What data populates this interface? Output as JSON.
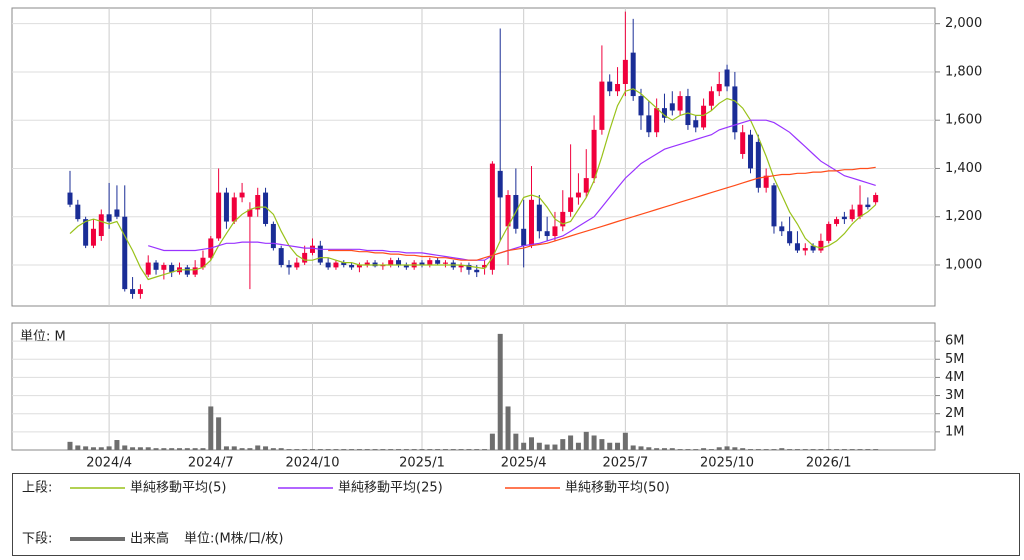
{
  "chart_data": [
    {
      "type": "candlestick",
      "legend_label": "上段:",
      "categories": [
        null,
        null,
        null,
        null,
        null,
        "2024/4",
        null,
        null,
        null,
        null,
        null,
        null,
        null,
        null,
        null,
        null,
        null,
        null,
        "2024/7",
        null,
        null,
        null,
        null,
        null,
        null,
        null,
        null,
        null,
        null,
        null,
        null,
        "2024/10",
        null,
        null,
        null,
        null,
        null,
        null,
        null,
        null,
        null,
        null,
        null,
        null,
        null,
        "2025/1",
        null,
        null,
        null,
        null,
        null,
        null,
        null,
        null,
        null,
        null,
        null,
        null,
        "2025/4",
        null,
        null,
        null,
        null,
        null,
        null,
        null,
        null,
        null,
        null,
        null,
        null,
        "2025/7",
        null,
        null,
        null,
        null,
        null,
        null,
        null,
        null,
        null,
        null,
        null,
        null,
        "2025/10",
        null,
        null,
        null,
        null,
        null,
        null,
        null,
        null,
        null,
        null,
        null,
        null,
        "2026/1",
        null,
        null,
        null,
        null,
        null,
        null
      ],
      "open": [
        1300,
        1250,
        1190,
        1080,
        1120,
        1210,
        1230,
        1200,
        900,
        880,
        960,
        1010,
        980,
        1000,
        970,
        990,
        960,
        990,
        1030,
        1110,
        1300,
        1180,
        1280,
        1200,
        1230,
        1300,
        1170,
        1070,
        1000,
        990,
        1010,
        1050,
        1080,
        1010,
        990,
        1010,
        1000,
        990,
        1000,
        1010,
        995,
        1000,
        1020,
        1000,
        990,
        1010,
        1000,
        1020,
        1005,
        1010,
        990,
        1000,
        980,
        990,
        980,
        1390,
        1160,
        1290,
        1150,
        1080,
        1250,
        1140,
        1120,
        1160,
        1220,
        1280,
        1300,
        1360,
        1560,
        1760,
        1720,
        1750,
        1880,
        1700,
        1620,
        1550,
        1650,
        1670,
        1640,
        1700,
        1600,
        1570,
        1660,
        1720,
        1810,
        1740,
        1460,
        1540,
        1510,
        1320,
        1330,
        1160,
        1140,
        1090,
        1060,
        1080,
        1060,
        1100,
        1170,
        1200,
        1190,
        1200,
        1250,
        1260
      ],
      "high": [
        1390,
        1270,
        1200,
        1190,
        1230,
        1340,
        1330,
        1330,
        950,
        920,
        1040,
        1020,
        1010,
        1010,
        1010,
        1000,
        1020,
        1060,
        1120,
        1400,
        1320,
        1300,
        1340,
        1260,
        1320,
        1320,
        1180,
        1080,
        1020,
        1030,
        1080,
        1110,
        1100,
        1030,
        1020,
        1020,
        1010,
        1010,
        1020,
        1020,
        1010,
        1030,
        1030,
        1010,
        1020,
        1020,
        1030,
        1030,
        1020,
        1020,
        1010,
        1010,
        1000,
        1020,
        1430,
        1980,
        1310,
        1400,
        1270,
        1410,
        1290,
        1200,
        1220,
        1310,
        1500,
        1380,
        1480,
        1620,
        1910,
        1790,
        1820,
        2050,
        2020,
        1730,
        1680,
        1690,
        1710,
        1720,
        1720,
        1730,
        1620,
        1690,
        1740,
        1800,
        1830,
        1800,
        1580,
        1560,
        1540,
        1400,
        1340,
        1180,
        1200,
        1140,
        1090,
        1090,
        1130,
        1180,
        1200,
        1220,
        1250,
        1330,
        1280,
        1300
      ],
      "low": [
        1240,
        1180,
        1070,
        1070,
        1100,
        1150,
        1190,
        890,
        860,
        860,
        950,
        960,
        940,
        950,
        960,
        950,
        950,
        980,
        1020,
        1100,
        1150,
        1170,
        1260,
        900,
        1200,
        1160,
        1060,
        990,
        960,
        980,
        1000,
        1040,
        1000,
        980,
        980,
        990,
        980,
        970,
        990,
        990,
        980,
        990,
        990,
        980,
        980,
        990,
        990,
        1000,
        990,
        980,
        970,
        960,
        950,
        960,
        960,
        1100,
        1000,
        1130,
        990,
        1070,
        1110,
        1100,
        1100,
        1140,
        1200,
        1250,
        1280,
        1340,
        1540,
        1700,
        1700,
        1700,
        1680,
        1560,
        1530,
        1530,
        1590,
        1620,
        1620,
        1560,
        1550,
        1560,
        1640,
        1700,
        1720,
        1520,
        1440,
        1380,
        1300,
        1300,
        1130,
        1120,
        1080,
        1050,
        1040,
        1050,
        1050,
        1090,
        1160,
        1170,
        1180,
        1190,
        1230,
        1250
      ],
      "close": [
        1250,
        1190,
        1080,
        1150,
        1210,
        1180,
        1200,
        900,
        880,
        900,
        1010,
        980,
        1000,
        970,
        990,
        960,
        990,
        1030,
        1110,
        1300,
        1180,
        1280,
        1300,
        1230,
        1290,
        1170,
        1070,
        1000,
        990,
        1010,
        1050,
        1080,
        1010,
        990,
        1010,
        1000,
        990,
        1000,
        1010,
        995,
        1000,
        1020,
        1000,
        990,
        1010,
        1000,
        1020,
        1005,
        1010,
        990,
        1000,
        980,
        970,
        1000,
        1420,
        1280,
        1290,
        1150,
        1080,
        1270,
        1140,
        1120,
        1160,
        1220,
        1280,
        1300,
        1360,
        1560,
        1760,
        1720,
        1750,
        1850,
        1700,
        1620,
        1550,
        1650,
        1610,
        1640,
        1700,
        1580,
        1570,
        1660,
        1720,
        1750,
        1740,
        1550,
        1550,
        1400,
        1320,
        1370,
        1160,
        1140,
        1090,
        1060,
        1070,
        1060,
        1100,
        1170,
        1190,
        1190,
        1230,
        1250,
        1240,
        1290
      ],
      "up_color": "#f0003c",
      "down_color": "#1a2d96",
      "series": [
        {
          "name": "単純移動平均(5)",
          "color": "#99c21a",
          "values": [
            1130,
            1160,
            1180,
            1190,
            1180,
            1170,
            1180,
            1120,
            1060,
            990,
            940,
            950,
            960,
            970,
            980,
            980,
            980,
            990,
            1020,
            1080,
            1130,
            1180,
            1210,
            1230,
            1240,
            1240,
            1210,
            1140,
            1080,
            1040,
            1020,
            1020,
            1030,
            1030,
            1020,
            1010,
            1010,
            1000,
            1000,
            1000,
            1000,
            1000,
            1000,
            1000,
            1000,
            1000,
            1000,
            1000,
            1000,
            1000,
            1000,
            995,
            990,
            985,
            1030,
            1100,
            1160,
            1220,
            1280,
            1290,
            1280,
            1240,
            1190,
            1170,
            1180,
            1230,
            1280,
            1350,
            1450,
            1560,
            1660,
            1720,
            1730,
            1710,
            1680,
            1650,
            1620,
            1600,
            1620,
            1630,
            1620,
            1620,
            1640,
            1670,
            1690,
            1680,
            1650,
            1600,
            1530,
            1450,
            1360,
            1290,
            1220,
            1170,
            1110,
            1080,
            1070,
            1080,
            1100,
            1130,
            1170,
            1200,
            1220,
            1250
          ]
        },
        {
          "name": "単純移動平均(25)",
          "color": "#9933ff",
          "values": [
            null,
            null,
            null,
            null,
            null,
            null,
            null,
            null,
            null,
            null,
            1080,
            1070,
            1060,
            1060,
            1060,
            1060,
            1060,
            1065,
            1070,
            1080,
            1090,
            1090,
            1095,
            1095,
            1095,
            1090,
            1090,
            1085,
            1080,
            1075,
            1070,
            1070,
            1065,
            1065,
            1065,
            1065,
            1065,
            1065,
            1060,
            1060,
            1060,
            1055,
            1055,
            1050,
            1050,
            1050,
            1045,
            1040,
            1035,
            1030,
            1025,
            1020,
            1020,
            1020,
            1040,
            1050,
            1060,
            1070,
            1080,
            1085,
            1090,
            1100,
            1110,
            1120,
            1140,
            1160,
            1180,
            1200,
            1240,
            1280,
            1320,
            1360,
            1390,
            1420,
            1440,
            1460,
            1480,
            1490,
            1500,
            1510,
            1520,
            1530,
            1540,
            1560,
            1570,
            1580,
            1590,
            1600,
            1600,
            1600,
            1590,
            1570,
            1550,
            1520,
            1490,
            1460,
            1430,
            1410,
            1390,
            1370,
            1360,
            1350,
            1340,
            1330
          ]
        },
        {
          "name": "単純移動平均(50)",
          "color": "#ff4c1a",
          "values": [
            null,
            null,
            null,
            null,
            null,
            null,
            null,
            null,
            null,
            null,
            null,
            null,
            null,
            null,
            null,
            null,
            null,
            null,
            null,
            null,
            null,
            null,
            null,
            null,
            null,
            null,
            null,
            null,
            null,
            null,
            null,
            null,
            null,
            1060,
            1060,
            1060,
            1060,
            1055,
            1055,
            1050,
            1050,
            1045,
            1045,
            1040,
            1040,
            1035,
            1035,
            1030,
            1030,
            1025,
            1020,
            1020,
            1020,
            1030,
            1040,
            1050,
            1060,
            1065,
            1070,
            1080,
            1085,
            1090,
            1100,
            1110,
            1120,
            1130,
            1140,
            1150,
            1160,
            1170,
            1180,
            1190,
            1200,
            1210,
            1220,
            1230,
            1240,
            1250,
            1260,
            1270,
            1280,
            1290,
            1300,
            1310,
            1320,
            1330,
            1340,
            1350,
            1360,
            1365,
            1370,
            1375,
            1375,
            1380,
            1380,
            1385,
            1385,
            1390,
            1390,
            1395,
            1395,
            1400,
            1400,
            1405
          ]
        }
      ],
      "ylim": [
        830,
        2065
      ],
      "yticks": [
        {
          "value": 1000,
          "label": "1,000"
        },
        {
          "value": 1200,
          "label": "1,200"
        },
        {
          "value": 1400,
          "label": "1,400"
        },
        {
          "value": 1600,
          "label": "1,600"
        },
        {
          "value": 1800,
          "label": "1,800"
        },
        {
          "value": 2000,
          "label": "2,000"
        }
      ],
      "grid": true
    },
    {
      "type": "bar",
      "legend_label": "下段:",
      "unit_label": "単位: M",
      "legend_note": "単位:(M株/口/枚)",
      "series": [
        {
          "name": "出来高",
          "color": "#6e6e6e",
          "values": [
            0.45,
            0.25,
            0.2,
            0.15,
            0.15,
            0.2,
            0.55,
            0.25,
            0.15,
            0.15,
            0.15,
            0.1,
            0.1,
            0.1,
            0.1,
            0.1,
            0.1,
            0.1,
            2.4,
            1.8,
            0.2,
            0.2,
            0.1,
            0.1,
            0.25,
            0.2,
            0.1,
            0.1,
            0.05,
            0.05,
            0.05,
            0.05,
            0.05,
            0.05,
            0.05,
            0.05,
            0.05,
            0.05,
            0.05,
            0.05,
            0.05,
            0.05,
            0.05,
            0.05,
            0.05,
            0.05,
            0.05,
            0.05,
            0.05,
            0.05,
            0.05,
            0.05,
            0.05,
            0.05,
            0.9,
            6.4,
            2.4,
            0.9,
            0.4,
            0.7,
            0.4,
            0.3,
            0.3,
            0.6,
            0.8,
            0.4,
            1.0,
            0.8,
            0.6,
            0.4,
            0.4,
            0.95,
            0.25,
            0.2,
            0.15,
            0.1,
            0.1,
            0.1,
            0.05,
            0.05,
            0.05,
            0.1,
            0.05,
            0.15,
            0.2,
            0.15,
            0.1,
            0.05,
            0.05,
            0.05,
            0.05,
            0.1,
            0.05,
            0.05,
            0.05,
            0.05,
            0.05,
            0.05,
            0.05,
            0.05,
            0.05,
            0.05,
            0.05,
            0.05
          ]
        }
      ],
      "ylim": [
        0,
        7
      ],
      "yticks": [
        {
          "value": 1,
          "label": "1M"
        },
        {
          "value": 2,
          "label": "2M"
        },
        {
          "value": 3,
          "label": "3M"
        },
        {
          "value": 4,
          "label": "4M"
        },
        {
          "value": 5,
          "label": "5M"
        },
        {
          "value": 6,
          "label": "6M"
        }
      ],
      "grid": true
    }
  ]
}
